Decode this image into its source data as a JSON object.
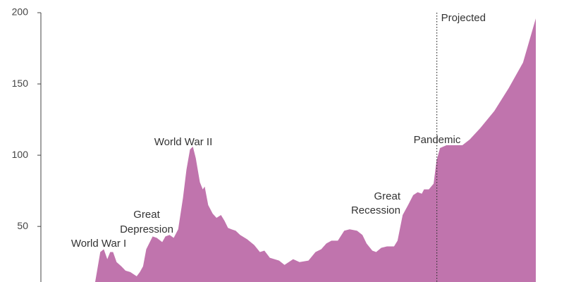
{
  "chart_data": {
    "type": "area",
    "color": "#c074ad",
    "x": [
      1916,
      1917.6,
      1918.7,
      1919.8,
      1920.7,
      1921.6,
      1922.7,
      1924.2,
      1925.5,
      1927,
      1929,
      1930,
      1931,
      1932,
      1934,
      1935.3,
      1937,
      1938,
      1939.3,
      1940.6,
      1942,
      1943.5,
      1944.6,
      1945.7,
      1946.6,
      1947.5,
      1948.8,
      1949.7,
      1950.3,
      1951.4,
      1952.8,
      1954,
      1955.4,
      1956.5,
      1957.6,
      1958.7,
      1960,
      1961.4,
      1963.6,
      1965.8,
      1967.6,
      1969,
      1970.7,
      1973.6,
      1975.3,
      1978,
      1980,
      1982.8,
      1985,
      1986.8,
      1988.4,
      1990,
      1992,
      1994,
      1995.7,
      1998,
      1999.7,
      2001,
      2002.8,
      2004,
      2005.6,
      2007.4,
      2009.6,
      2010.7,
      2012.3,
      2014,
      2015.6,
      2017,
      2018.3,
      2019,
      2020.5,
      2022,
      2022.9,
      2024,
      2026,
      2029,
      2031,
      2033.3,
      2036.6,
      2041,
      2045.5,
      2050,
      2054
    ],
    "values": [
      11,
      32,
      34,
      27,
      32,
      32,
      25,
      22,
      19,
      18,
      15,
      18,
      22,
      34,
      43,
      42,
      39,
      43,
      44,
      42,
      48,
      70,
      90,
      104,
      106,
      98,
      81,
      76,
      78,
      65,
      59,
      56,
      58,
      54,
      49,
      48,
      47,
      44,
      41,
      37,
      32,
      33,
      28,
      26,
      23,
      27,
      25,
      26,
      32,
      34,
      38,
      40,
      40,
      47,
      48,
      47,
      44,
      38,
      33,
      32,
      35,
      36,
      36,
      40,
      58,
      65,
      72,
      74,
      73,
      76,
      76,
      80,
      96,
      105,
      107,
      107,
      107,
      111,
      119,
      131,
      147,
      165,
      196
    ],
    "xlim": [
      1899,
      2054
    ],
    "ylim": [
      11,
      200
    ],
    "yticks": [
      50,
      100,
      150,
      200
    ],
    "projection_start": 2023,
    "projection_label": "Projected",
    "annotations": [
      [
        "World War I"
      ],
      [
        "Great",
        "Depression"
      ],
      [
        "World War II"
      ],
      [
        "Great",
        "Recession"
      ],
      [
        "Pandemic"
      ]
    ]
  }
}
